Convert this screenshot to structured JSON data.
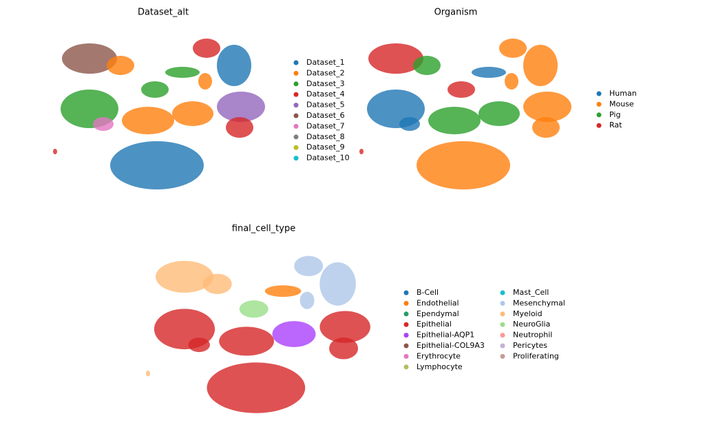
{
  "chart_data": [
    {
      "type": "scatter",
      "title": "Dataset_alt",
      "series": [
        {
          "name": "Dataset_1",
          "color": "#1f77b4"
        },
        {
          "name": "Dataset_2",
          "color": "#ff7f0e"
        },
        {
          "name": "Dataset_3",
          "color": "#2ca02c"
        },
        {
          "name": "Dataset_4",
          "color": "#d62728"
        },
        {
          "name": "Dataset_5",
          "color": "#9467bd"
        },
        {
          "name": "Dataset_6",
          "color": "#8c564b"
        },
        {
          "name": "Dataset_7",
          "color": "#e377c2"
        },
        {
          "name": "Dataset_8",
          "color": "#7f7f7f"
        },
        {
          "name": "Dataset_9",
          "color": "#bcbd22"
        },
        {
          "name": "Dataset_10",
          "color": "#17becf"
        }
      ]
    },
    {
      "type": "scatter",
      "title": "Organism",
      "series": [
        {
          "name": "Human",
          "color": "#1f77b4"
        },
        {
          "name": "Mouse",
          "color": "#ff7f0e"
        },
        {
          "name": "Pig",
          "color": "#2ca02c"
        },
        {
          "name": "Rat",
          "color": "#d62728"
        }
      ]
    },
    {
      "type": "scatter",
      "title": "final_cell_type",
      "series": [
        {
          "name": "B-Cell",
          "color": "#1f77b4"
        },
        {
          "name": "Endothelial",
          "color": "#ff7f0e"
        },
        {
          "name": "Ependymal",
          "color": "#279e68"
        },
        {
          "name": "Epithelial",
          "color": "#d62728"
        },
        {
          "name": "Epithelial-AQP1",
          "color": "#aa40fc"
        },
        {
          "name": "Epithelial-COL9A3",
          "color": "#8c564b"
        },
        {
          "name": "Erythrocyte",
          "color": "#e377c2"
        },
        {
          "name": "Lymphocyte",
          "color": "#b5bd61"
        },
        {
          "name": "Mast_Cell",
          "color": "#17becf"
        },
        {
          "name": "Mesenchymal",
          "color": "#aec7e8"
        },
        {
          "name": "Myeloid",
          "color": "#ffbb78"
        },
        {
          "name": "NeuroGlia",
          "color": "#98df8a"
        },
        {
          "name": "Neutrophil",
          "color": "#ff9896"
        },
        {
          "name": "Pericytes",
          "color": "#c5b0d5"
        },
        {
          "name": "Proliferating",
          "color": "#c49c94"
        }
      ]
    }
  ]
}
